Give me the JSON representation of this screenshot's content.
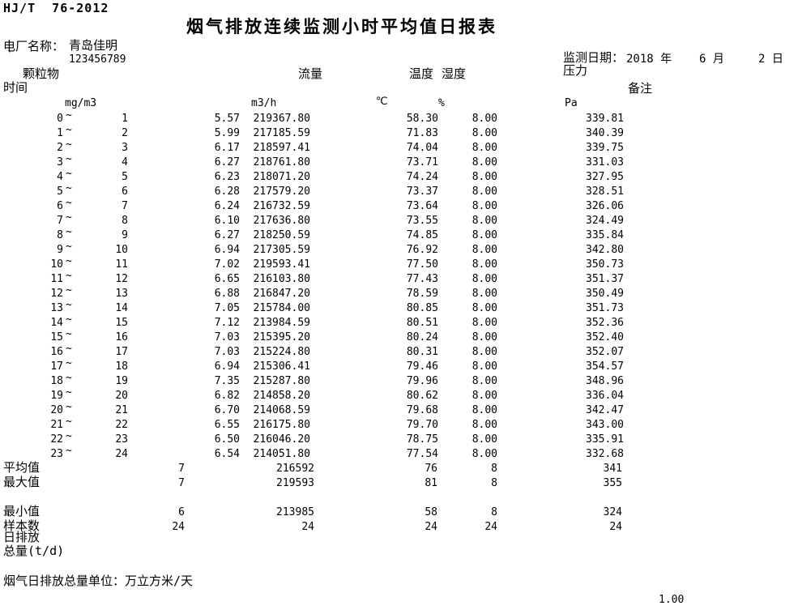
{
  "meta": {
    "standard": "HJ/T  76-2012",
    "title": "烟气排放连续监测小时平均值日报表",
    "plant_label": "电厂名称：",
    "plant_name": "青岛佳明",
    "plant_tick": "`",
    "plant_code": "123456789",
    "date_label": "监测日期：",
    "date_year": "2018 年",
    "date_month": "6 月",
    "date_day": "2 日"
  },
  "columns": {
    "time_label": "时间",
    "range_separator": "~",
    "pm_label": "颗粒物",
    "pm_unit": "mg/m3",
    "flow_label": "流量",
    "flow_unit": "m3/h",
    "temp_label": "温度",
    "temp_unit": "℃",
    "hum_label": "湿度",
    "hum_unit": "%",
    "press_label": "压力",
    "press_unit": "Pa",
    "note_label": "备注"
  },
  "rows": [
    {
      "from": "0",
      "to": "1",
      "pm": "5.57",
      "flow": "219367.80",
      "temp": "58.30",
      "hum": "8.00",
      "press": "339.81"
    },
    {
      "from": "1",
      "to": "2",
      "pm": "5.99",
      "flow": "217185.59",
      "temp": "71.83",
      "hum": "8.00",
      "press": "340.39"
    },
    {
      "from": "2",
      "to": "3",
      "pm": "6.17",
      "flow": "218597.41",
      "temp": "74.04",
      "hum": "8.00",
      "press": "339.75"
    },
    {
      "from": "3",
      "to": "4",
      "pm": "6.27",
      "flow": "218761.80",
      "temp": "73.71",
      "hum": "8.00",
      "press": "331.03"
    },
    {
      "from": "4",
      "to": "5",
      "pm": "6.23",
      "flow": "218071.20",
      "temp": "74.24",
      "hum": "8.00",
      "press": "327.95"
    },
    {
      "from": "5",
      "to": "6",
      "pm": "6.28",
      "flow": "217579.20",
      "temp": "73.37",
      "hum": "8.00",
      "press": "328.51"
    },
    {
      "from": "6",
      "to": "7",
      "pm": "6.24",
      "flow": "216732.59",
      "temp": "73.64",
      "hum": "8.00",
      "press": "326.06"
    },
    {
      "from": "7",
      "to": "8",
      "pm": "6.10",
      "flow": "217636.80",
      "temp": "73.55",
      "hum": "8.00",
      "press": "324.49"
    },
    {
      "from": "8",
      "to": "9",
      "pm": "6.27",
      "flow": "218250.59",
      "temp": "74.85",
      "hum": "8.00",
      "press": "335.84"
    },
    {
      "from": "9",
      "to": "10",
      "pm": "6.94",
      "flow": "217305.59",
      "temp": "76.92",
      "hum": "8.00",
      "press": "342.80"
    },
    {
      "from": "10",
      "to": "11",
      "pm": "7.02",
      "flow": "219593.41",
      "temp": "77.50",
      "hum": "8.00",
      "press": "350.73"
    },
    {
      "from": "11",
      "to": "12",
      "pm": "6.65",
      "flow": "216103.80",
      "temp": "77.43",
      "hum": "8.00",
      "press": "351.37"
    },
    {
      "from": "12",
      "to": "13",
      "pm": "6.88",
      "flow": "216847.20",
      "temp": "78.59",
      "hum": "8.00",
      "press": "350.49"
    },
    {
      "from": "13",
      "to": "14",
      "pm": "7.05",
      "flow": "215784.00",
      "temp": "80.85",
      "hum": "8.00",
      "press": "351.73"
    },
    {
      "from": "14",
      "to": "15",
      "pm": "7.12",
      "flow": "213984.59",
      "temp": "80.51",
      "hum": "8.00",
      "press": "352.36"
    },
    {
      "from": "15",
      "to": "16",
      "pm": "7.03",
      "flow": "215395.20",
      "temp": "80.24",
      "hum": "8.00",
      "press": "352.40"
    },
    {
      "from": "16",
      "to": "17",
      "pm": "7.03",
      "flow": "215224.80",
      "temp": "80.31",
      "hum": "8.00",
      "press": "352.07"
    },
    {
      "from": "17",
      "to": "18",
      "pm": "6.94",
      "flow": "215306.41",
      "temp": "79.46",
      "hum": "8.00",
      "press": "354.57"
    },
    {
      "from": "18",
      "to": "19",
      "pm": "7.35",
      "flow": "215287.80",
      "temp": "79.96",
      "hum": "8.00",
      "press": "348.96"
    },
    {
      "from": "19",
      "to": "20",
      "pm": "6.82",
      "flow": "214858.20",
      "temp": "80.62",
      "hum": "8.00",
      "press": "336.04"
    },
    {
      "from": "20",
      "to": "21",
      "pm": "6.70",
      "flow": "214068.59",
      "temp": "79.68",
      "hum": "8.00",
      "press": "342.47"
    },
    {
      "from": "21",
      "to": "22",
      "pm": "6.55",
      "flow": "216175.80",
      "temp": "79.70",
      "hum": "8.00",
      "press": "343.00"
    },
    {
      "from": "22",
      "to": "23",
      "pm": "6.50",
      "flow": "216046.20",
      "temp": "78.75",
      "hum": "8.00",
      "press": "335.91"
    },
    {
      "from": "23",
      "to": "24",
      "pm": "6.54",
      "flow": "214051.80",
      "temp": "77.54",
      "hum": "8.00",
      "press": "332.68"
    }
  ],
  "summary": [
    {
      "label": "平均值",
      "pm": "7",
      "flow": "216592",
      "temp": "76",
      "hum": "8",
      "press": "341"
    },
    {
      "label": "最大值",
      "pm": "7",
      "flow": "219593",
      "temp": "81",
      "hum": "8",
      "press": "355"
    },
    {
      "label": "最小值",
      "pm": "6",
      "flow": "213985",
      "temp": "58",
      "hum": "8",
      "press": "324"
    },
    {
      "label": "样本数",
      "pm": "24",
      "flow": "24",
      "temp": "24",
      "hum": "24",
      "press": "24"
    }
  ],
  "footer": {
    "daily_emission_label_1": "日排放",
    "daily_emission_label_2": "总量(t/d)",
    "unit_note": "烟气日排放总量单位：万立方米/天",
    "scale_value": "1.00"
  }
}
